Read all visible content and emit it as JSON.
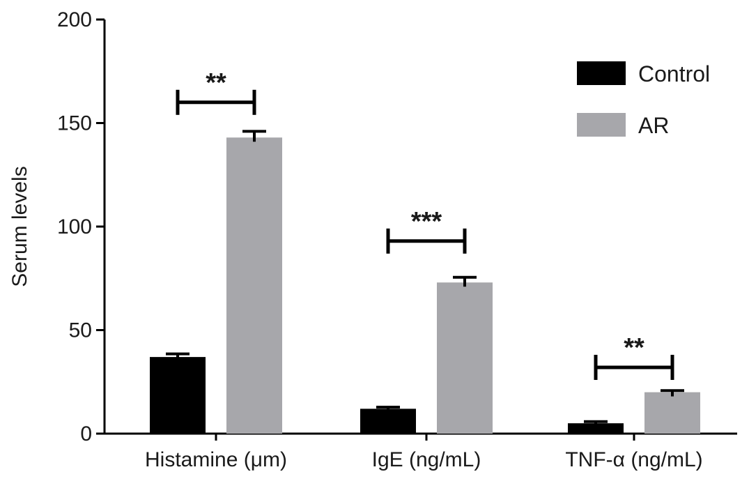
{
  "chart_data": {
    "type": "bar",
    "title": "",
    "xlabel": "",
    "ylabel": "Serum levels",
    "ylim": [
      0,
      200
    ],
    "yticks": [
      0,
      50,
      100,
      150,
      200
    ],
    "categories": [
      "Histamine (μm)",
      "IgE (ng/mL)",
      "TNF-α (ng/mL)"
    ],
    "series": [
      {
        "name": "Control",
        "color": "#000000",
        "values": [
          37,
          12,
          5
        ],
        "errors": [
          1.5,
          0.8,
          0.8
        ]
      },
      {
        "name": "AR",
        "color": "#a7a7ab",
        "values": [
          143,
          73,
          20
        ],
        "errors": [
          3,
          2.5,
          0.8
        ]
      }
    ],
    "significance": [
      {
        "category": "Histamine (μm)",
        "label": "**",
        "y": 160
      },
      {
        "category": "IgE (ng/mL)",
        "label": "***",
        "y": 93
      },
      {
        "category": "TNF-α (ng/mL)",
        "label": "**",
        "y": 32
      }
    ],
    "legend_position": "top-right",
    "grid": false
  }
}
